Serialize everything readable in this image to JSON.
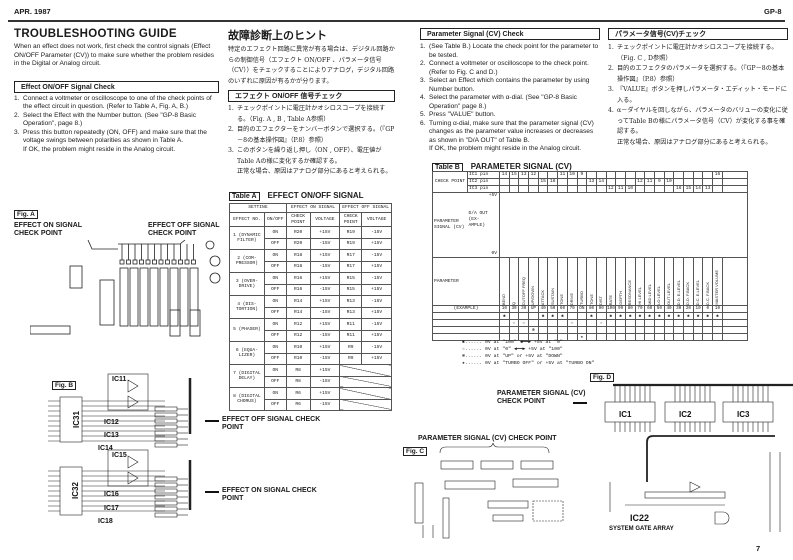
{
  "header": {
    "date": "APR. 1987",
    "model": "GP-8",
    "page": "7"
  },
  "en_intro": {
    "title": "TROUBLESHOOTING GUIDE",
    "text": "When an effect does not work, first check the control signals (Effect ON/OFF Parameter (CV)) to make sure whether the problem resides in the Digital or Analog circuit."
  },
  "en_onoff": {
    "heading": "Effect ON/OFF Signal Check",
    "steps": [
      "Connect a voltmeter or oscilloscope to one of the check points of the effect circuit in question. (Refer to Table A, Fig. A, B.)",
      "Select the Effect with the Number button. (See \"GP-8 Basic Operation\", page 8.)",
      "Press this button repeatedly (ON, OFF) and make sure that the voltage swings between polarities as shown in Table A."
    ],
    "note": "If OK, the problem might reside in the Analog circuit."
  },
  "jp_intro": {
    "title": "故障診断上のヒント",
    "text": "特定のエフェクト回路に異常が有る場合は、デジタル回路からの制御信号（エフェクト ON/OFF 、パラメータ信号（CV））をチェックすることによりアナログ，デジタル回路のいずれに原因が有るかが分ります。"
  },
  "jp_onoff": {
    "heading": "エフェクト ON/OFF 信号チェック",
    "steps": [
      "チェックポイントに電圧計かオシロスコープを接続する。（Fig. A , B , Table A参照）",
      "目的のエフェクターをナンバーボタンで選択する。（『GP－8の基本操作図』（P.8）参照）",
      "このボタンを繰り返し押し（ON , OFF）、電圧値が Table Aの様に変化するか確認する。"
    ],
    "note": "正常な場合、原因はアナログ部分にあると考えられる。"
  },
  "en_cv": {
    "heading": "Parameter Signal (CV) Check",
    "steps": [
      "(See Table B.) Locate the check point for the parameter to be tested.",
      "Connect a voltmeter or oscilloscope to the check point. (Refer to Fig. C and D.)",
      "Select an Effect which contains the parameter by using Number button.",
      "Select the parameter with α-dial. (See \"GP-8 Basic Operation\" page 8.)",
      "Press \"VALUE\" button.",
      "Turning α-dial, make sure that the parameter signal (CV) changes as the parameter value increases or decreases as shown in \"D/A OUT\" of Table B."
    ],
    "note": "If OK, the problem might reside in the Analog circuit."
  },
  "jp_cv": {
    "heading": "パラメータ信号(CV)チェック",
    "steps": [
      "チェックポイントに電圧計かオシロスコープを接続する。（Fig. C , D参照）",
      "目的のエフェクタのパラメータを選択する。（『GP－8の基本操作図』（P.8）参照）",
      "『VALUE』ボタンを押しパラメータ・エディット・モードに入る。",
      "α－ダイヤルを回しながら、パラメータのバリューの変化に従ってTable Bの様にパラメータ信号（CV）が変化する事を確認する。"
    ],
    "note": "正常な場合、原因はアナログ部分にあると考えられる。"
  },
  "table_a": {
    "label": "Table A",
    "title": "EFFECT ON/OFF SIGNAL",
    "group_headers": [
      "SETTING",
      "EFFECT ON SIGNAL",
      "EFFECT OFF SIGNAL"
    ],
    "headers": [
      "EFFECT NO.",
      "ON/OFF",
      "CHECK POINT",
      "VOLTAGE",
      "CHECK POINT",
      "VOLTAGE"
    ],
    "effects": [
      {
        "name": "1 (DYNAMIC FILTER)",
        "rows": [
          [
            "ON",
            "R20",
            "+15V",
            "R19",
            "-15V"
          ],
          [
            "OFF",
            "R20",
            "-15V",
            "R19",
            "+15V"
          ]
        ]
      },
      {
        "name": "2 (COM-PRESSOR)",
        "rows": [
          [
            "ON",
            "R18",
            "+15V",
            "R17",
            "-15V"
          ],
          [
            "OFF",
            "R18",
            "-15V",
            "R17",
            "+15V"
          ]
        ]
      },
      {
        "name": "3 (OVER-DRIVE)",
        "rows": [
          [
            "ON",
            "R16",
            "+15V",
            "R15",
            "-15V"
          ],
          [
            "OFF",
            "R16",
            "-15V",
            "R15",
            "+15V"
          ]
        ]
      },
      {
        "name": "4 (DIS-TORTION)",
        "rows": [
          [
            "ON",
            "R14",
            "+15V",
            "R13",
            "-15V"
          ],
          [
            "OFF",
            "R14",
            "-15V",
            "R13",
            "+15V"
          ]
        ]
      },
      {
        "name": "5 (PHASER)",
        "rows": [
          [
            "ON",
            "R12",
            "+15V",
            "R11",
            "-15V"
          ],
          [
            "OFF",
            "R12",
            "-15V",
            "R11",
            "+15V"
          ]
        ]
      },
      {
        "name": "6 (EQUA-LIZER)",
        "rows": [
          [
            "ON",
            "R10",
            "+15V",
            "R9",
            "-15V"
          ],
          [
            "OFF",
            "R10",
            "-15V",
            "R9",
            "+15V"
          ]
        ]
      },
      {
        "name": "7 (DIGITAL DELAY)",
        "rows": [
          [
            "ON",
            "R8",
            "+15V",
            null,
            null
          ],
          [
            "OFF",
            "R8",
            "-15V",
            null,
            null
          ]
        ]
      },
      {
        "name": "8 (DIGITAL CHORUS)",
        "rows": [
          [
            "ON",
            "R6",
            "+15V",
            null,
            null
          ],
          [
            "OFF",
            "R6",
            "-15V",
            null,
            null
          ]
        ]
      }
    ]
  },
  "table_b": {
    "label": "Table B",
    "title": "PARAMETER SIGNAL (CV)",
    "check_point_label": "CHECK POINT",
    "ic_rows": [
      "IC1 pin",
      "IC2 pin",
      "IC3 pin"
    ],
    "signal_label": "PARAMETER SIGNAL (CV)",
    "da_label": "D/A OUT (EX-AMPLE)",
    "v_high": "+5V",
    "v_low": "0V",
    "parameter_label": "PARAMETER",
    "example_label": "(EXAMPLE)",
    "parameters": [
      {
        "name": "BEND",
        "ic": 1,
        "pin": "14",
        "example": "10",
        "mark": 0
      },
      {
        "name": "Q",
        "ic": 1,
        "pin": "15",
        "example": "30",
        "mark": 1
      },
      {
        "name": "CUTOFF FREQ",
        "ic": 1,
        "pin": "13",
        "example": "30",
        "mark": 1
      },
      {
        "name": "UP/DOWN",
        "ic": 1,
        "pin": "12",
        "example": "UP",
        "mark": 2
      },
      {
        "name": "ATTACK",
        "ic": 2,
        "pin": "15",
        "example": "40",
        "mark": 0
      },
      {
        "name": "SUSTAIN",
        "ic": 2,
        "pin": "16",
        "example": "50",
        "mark": 0
      },
      {
        "name": "TONE",
        "ic": 1,
        "pin": "11",
        "example": "60",
        "mark": 0
      },
      {
        "name": "DRIVE",
        "ic": 1,
        "pin": "10",
        "example": "70",
        "mark": 1
      },
      {
        "name": "TURBO",
        "ic": 1,
        "pin": "9",
        "example": "ON",
        "mark": 3
      },
      {
        "name": "TONE",
        "ic": 2,
        "pin": "13",
        "example": "80",
        "mark": 0
      },
      {
        "name": "DIST",
        "ic": 2,
        "pin": "14",
        "example": "90",
        "mark": 1
      },
      {
        "name": "RATE",
        "ic": 3,
        "pin": "12",
        "example": "100",
        "mark": 0
      },
      {
        "name": "DEPTH",
        "ic": 3,
        "pin": "11",
        "example": "90",
        "mark": 0
      },
      {
        "name": "RESONANCE",
        "ic": 3,
        "pin": "10",
        "example": "80",
        "mark": 0
      },
      {
        "name": "HI LEVEL",
        "ic": 2,
        "pin": "12",
        "example": "70",
        "mark": 0
      },
      {
        "name": "MID LEVEL",
        "ic": 2,
        "pin": "11",
        "example": "60",
        "mark": 0
      },
      {
        "name": "LO LEVEL",
        "ic": 2,
        "pin": "9",
        "example": "50",
        "mark": 0
      },
      {
        "name": "OUT LEVEL",
        "ic": 2,
        "pin": "10",
        "example": "40",
        "mark": 0
      },
      {
        "name": "D.D. E.LEVEL",
        "ic": 3,
        "pin": "16",
        "example": "30",
        "mark": 0
      },
      {
        "name": "D.D. F.BACK",
        "ic": 3,
        "pin": "15",
        "example": "20",
        "mark": 0
      },
      {
        "name": "D.C. E.LEVEL",
        "ic": 3,
        "pin": "14",
        "example": "10",
        "mark": 0
      },
      {
        "name": "D.C. F.BACK",
        "ic": 3,
        "pin": "13",
        "example": "0",
        "mark": 0
      },
      {
        "name": "MASTER VOLUME",
        "ic": 1,
        "pin": "16",
        "example": "10",
        "mark": 0
      }
    ],
    "marks": [
      "✱",
      "☆",
      "⊛",
      "★"
    ],
    "legend": [
      "✱...... 0V at \"100\" ◀━━▶ +5V at \"0\"",
      "☆...... 0V at \"0\" ◀━━▶ +5V at \"100\"",
      "⊛...... 0V at \"UP\"  or  +5V at \"DOWN\"",
      "★...... 0V at \"TURBO OFF\" or +5V at \"TURBO ON\""
    ]
  },
  "figures": {
    "fig_a": "Fig. A",
    "fig_b": "Fig. B",
    "fig_c": "Fig. C",
    "fig_d": "Fig. D",
    "on_cp": "EFFECT ON SIGNAL CHECK POINT",
    "off_cp": "EFFECT OFF SIGNAL CHECK POINT",
    "cv_cp": "PARAMETER SIGNAL (CV) CHECK POINT",
    "fig_b_ics": [
      "IC11",
      "IC12",
      "IC13",
      "IC14",
      "IC15",
      "IC16",
      "IC17",
      "IC18",
      "IC31",
      "IC32"
    ],
    "fig_d_ics": [
      "IC1",
      "IC2",
      "IC3",
      "IC22"
    ],
    "fig_d_gate": "SYSTEM GATE ARRAY"
  }
}
